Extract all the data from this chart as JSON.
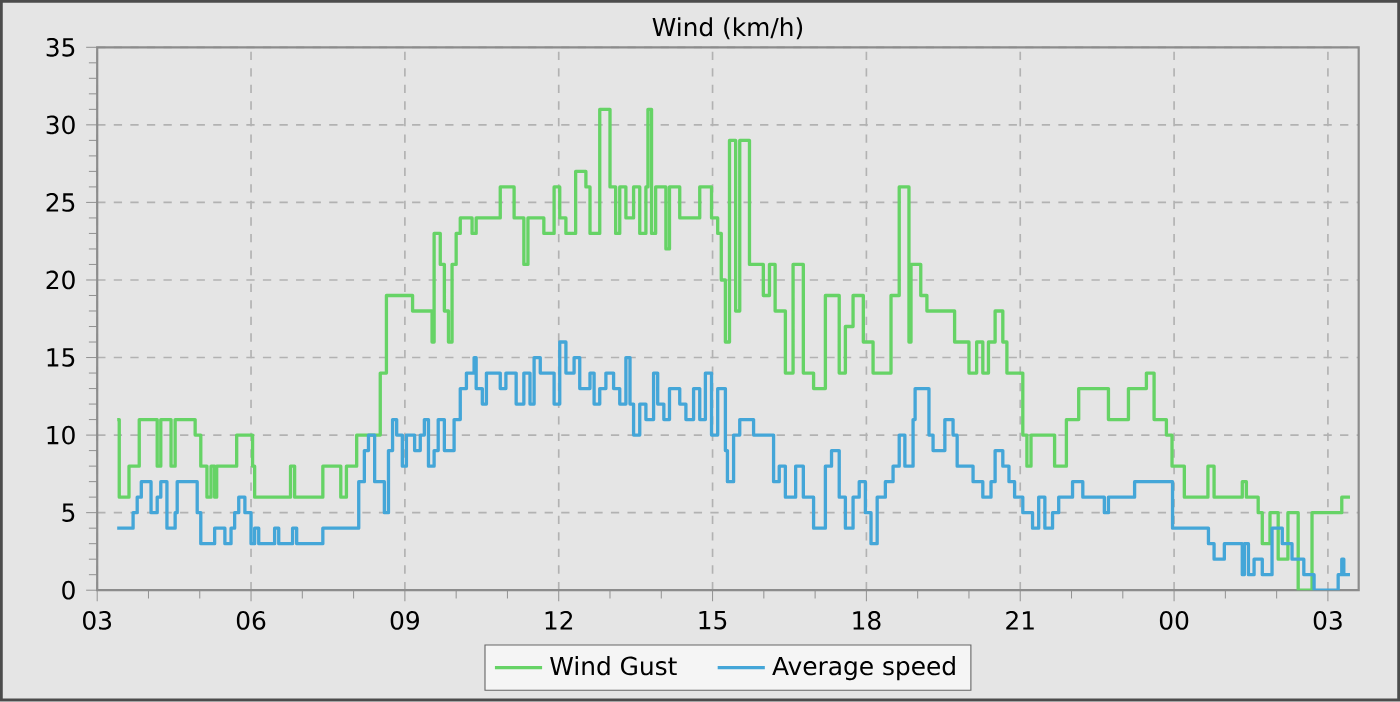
{
  "chart_data": {
    "type": "step",
    "title": "Wind (km/h)",
    "xlim": [
      3,
      27.6
    ],
    "ylim": [
      0,
      35
    ],
    "xticks": [
      {
        "value": 3,
        "label": "03"
      },
      {
        "value": 6,
        "label": "06"
      },
      {
        "value": 9,
        "label": "09"
      },
      {
        "value": 12,
        "label": "12"
      },
      {
        "value": 15,
        "label": "15"
      },
      {
        "value": 18,
        "label": "18"
      },
      {
        "value": 21,
        "label": "21"
      },
      {
        "value": 24,
        "label": "00"
      },
      {
        "value": 27,
        "label": "03"
      }
    ],
    "yticks": [
      0,
      5,
      10,
      15,
      20,
      25,
      30,
      35
    ],
    "grid": true,
    "legend": "bottom",
    "series": [
      {
        "name": "Wind Gust",
        "color": "#66d366",
        "x": [
          3.39,
          3.43,
          3.62,
          3.82,
          4.17,
          4.24,
          4.44,
          4.52,
          4.91,
          5.02,
          5.14,
          5.22,
          5.29,
          5.33,
          5.72,
          6.03,
          6.07,
          6.77,
          6.85,
          7.4,
          7.75,
          7.86,
          8.06,
          8.52,
          8.64,
          9.15,
          9.53,
          9.57,
          9.69,
          9.77,
          9.85,
          9.92,
          10.0,
          10.08,
          10.31,
          10.39,
          10.86,
          11.13,
          11.32,
          11.4,
          11.71,
          11.91,
          12.02,
          12.14,
          12.33,
          12.53,
          12.61,
          12.8,
          13.0,
          13.11,
          13.19,
          13.31,
          13.46,
          13.58,
          13.7,
          13.74,
          13.81,
          13.89,
          14.09,
          14.16,
          14.36,
          14.75,
          14.98,
          15.1,
          15.17,
          15.25,
          15.33,
          15.45,
          15.53,
          15.72,
          15.99,
          16.11,
          16.22,
          16.42,
          16.57,
          16.77,
          16.97,
          17.2,
          17.47,
          17.59,
          17.74,
          17.94,
          18.13,
          18.48,
          18.64,
          18.83,
          18.87,
          19.06,
          19.18,
          19.72,
          20.0,
          20.15,
          20.27,
          20.38,
          20.51,
          20.66,
          20.74,
          21.05,
          21.13,
          21.21,
          21.67,
          21.9,
          22.14,
          22.72,
          23.11,
          23.46,
          23.61,
          23.85,
          23.96,
          24.2,
          24.66,
          24.78,
          25.33,
          25.41,
          25.64,
          25.72,
          25.87,
          26.03,
          26.22,
          26.42,
          26.69,
          27.27,
          27.43
        ],
        "values": [
          11,
          6,
          8,
          11,
          8,
          11,
          8,
          11,
          10,
          8,
          6,
          8,
          6,
          8,
          10,
          8,
          6,
          8,
          6,
          8,
          6,
          8,
          10,
          14,
          19,
          18,
          16,
          23,
          21,
          18,
          16,
          21,
          23,
          24,
          23,
          24,
          26,
          24,
          21,
          24,
          23,
          26,
          24,
          23,
          27,
          26,
          23,
          31,
          26,
          23,
          26,
          24,
          26,
          23,
          26,
          31,
          23,
          26,
          22,
          26,
          24,
          26,
          24,
          23,
          20,
          16,
          29,
          18,
          29,
          21,
          19,
          21,
          18,
          14,
          21,
          14,
          13,
          19,
          14,
          17,
          19,
          16,
          14,
          19,
          26,
          16,
          21,
          19,
          18,
          16,
          14,
          16,
          14,
          16,
          18,
          16,
          14,
          10,
          8,
          10,
          8,
          11,
          13,
          11,
          13,
          14,
          11,
          10,
          8,
          6,
          8,
          6,
          7,
          6,
          5,
          3,
          5,
          2,
          5,
          0,
          5,
          6,
          6
        ]
      },
      {
        "name": "Average speed",
        "color": "#44a6d8",
        "x": [
          3.39,
          3.7,
          3.78,
          3.86,
          4.05,
          4.17,
          4.24,
          4.36,
          4.52,
          4.56,
          4.95,
          5.02,
          5.29,
          5.49,
          5.61,
          5.68,
          5.76,
          5.88,
          6.0,
          6.07,
          6.15,
          6.46,
          6.54,
          6.81,
          6.89,
          7.4,
          8.1,
          8.21,
          8.29,
          8.41,
          8.6,
          8.68,
          8.76,
          8.84,
          8.95,
          9.03,
          9.19,
          9.3,
          9.38,
          9.46,
          9.57,
          9.65,
          9.77,
          9.96,
          10.08,
          10.2,
          10.35,
          10.39,
          10.51,
          10.59,
          10.86,
          10.97,
          11.17,
          11.32,
          11.44,
          11.52,
          11.64,
          11.91,
          12.02,
          12.14,
          12.3,
          12.41,
          12.61,
          12.69,
          12.8,
          12.92,
          13.07,
          13.19,
          13.31,
          13.39,
          13.46,
          13.58,
          13.7,
          13.85,
          13.93,
          14.05,
          14.16,
          14.36,
          14.48,
          14.63,
          14.75,
          14.86,
          14.98,
          15.1,
          15.25,
          15.29,
          15.41,
          15.53,
          15.8,
          16.19,
          16.3,
          16.42,
          16.62,
          16.77,
          16.97,
          17.2,
          17.32,
          17.47,
          17.59,
          17.74,
          17.86,
          17.98,
          18.09,
          18.21,
          18.37,
          18.52,
          18.64,
          18.75,
          18.91,
          18.95,
          19.22,
          19.3,
          19.53,
          19.69,
          19.77,
          20.08,
          20.27,
          20.43,
          20.51,
          20.66,
          20.78,
          20.89,
          21.05,
          21.24,
          21.36,
          21.48,
          21.63,
          21.75,
          22.02,
          22.22,
          22.64,
          22.72,
          23.23,
          23.97,
          24.67,
          24.78,
          24.98,
          25.33,
          25.37,
          25.45,
          25.56,
          25.72,
          25.91,
          26.11,
          26.3,
          26.53,
          26.73,
          27.2,
          27.27,
          27.31,
          27.43
        ],
        "values": [
          4,
          5,
          6,
          7,
          5,
          6,
          7,
          4,
          5,
          7,
          5,
          3,
          4,
          3,
          4,
          5,
          6,
          5,
          3,
          4,
          3,
          4,
          3,
          4,
          3,
          4,
          7,
          9,
          10,
          7,
          5,
          9,
          11,
          10,
          8,
          10,
          9,
          10,
          11,
          8,
          9,
          11,
          9,
          11,
          13,
          14,
          15,
          13,
          12,
          14,
          13,
          14,
          12,
          14,
          12,
          15,
          14,
          12,
          16,
          14,
          15,
          13,
          14,
          12,
          13,
          14,
          13,
          12,
          15,
          12,
          10,
          12,
          11,
          14,
          12,
          11,
          13,
          12,
          11,
          13,
          11,
          14,
          10,
          13,
          9,
          7,
          10,
          11,
          10,
          7,
          8,
          6,
          8,
          6,
          4,
          8,
          9,
          6,
          4,
          6,
          7,
          5,
          3,
          6,
          7,
          8,
          10,
          8,
          11,
          13,
          10,
          9,
          11,
          10,
          8,
          7,
          6,
          7,
          9,
          8,
          7,
          6,
          5,
          4,
          6,
          4,
          5,
          6,
          7,
          6,
          5,
          6,
          7,
          4,
          3,
          2,
          3,
          1,
          3,
          1,
          2,
          1,
          4,
          3,
          2,
          1,
          0,
          1,
          2,
          1,
          1
        ]
      }
    ]
  }
}
